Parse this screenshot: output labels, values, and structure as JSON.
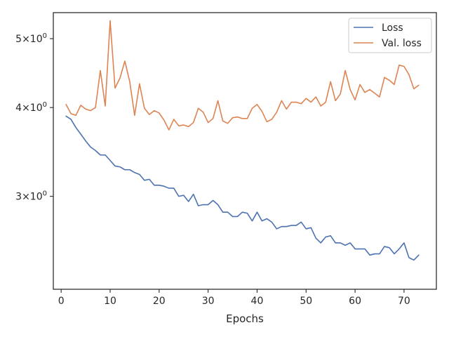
{
  "chart_data": {
    "type": "line",
    "title": "",
    "xlabel": "Epochs",
    "ylabel": "",
    "y_scale": "log",
    "xlim": [
      -1.6,
      76.6
    ],
    "ylim": [
      2.22,
      5.44
    ],
    "grid": false,
    "legend_position": "top-right",
    "x_ticks": [
      {
        "value": 0,
        "label": "0"
      },
      {
        "value": 10,
        "label": "10"
      },
      {
        "value": 20,
        "label": "20"
      },
      {
        "value": 30,
        "label": "30"
      },
      {
        "value": 40,
        "label": "40"
      },
      {
        "value": 50,
        "label": "50"
      },
      {
        "value": 60,
        "label": "60"
      },
      {
        "value": 70,
        "label": "70"
      }
    ],
    "y_ticks": [
      {
        "value": 3,
        "base": "3",
        "sup": "0"
      },
      {
        "value": 4,
        "base": "4",
        "sup": "0"
      },
      {
        "value": 5,
        "base": "5",
        "sup": "0"
      }
    ],
    "series": [
      {
        "name": "Loss",
        "color": "#4c72b0",
        "x": [
          1,
          2,
          3,
          4,
          5,
          6,
          7,
          8,
          9,
          10,
          11,
          12,
          13,
          14,
          15,
          16,
          17,
          18,
          19,
          20,
          21,
          22,
          23,
          24,
          25,
          26,
          27,
          28,
          29,
          30,
          31,
          32,
          33,
          34,
          35,
          36,
          37,
          38,
          39,
          40,
          41,
          42,
          43,
          44,
          45,
          46,
          47,
          48,
          49,
          50,
          51,
          52,
          53,
          54,
          55,
          56,
          57,
          58,
          59,
          60,
          61,
          62,
          63,
          64,
          65,
          66,
          67,
          68,
          69,
          70,
          71,
          72,
          73
        ],
        "y": [
          3.89,
          3.85,
          3.75,
          3.67,
          3.59,
          3.52,
          3.48,
          3.43,
          3.43,
          3.37,
          3.31,
          3.3,
          3.27,
          3.27,
          3.24,
          3.22,
          3.16,
          3.17,
          3.11,
          3.11,
          3.1,
          3.08,
          3.08,
          3.0,
          3.01,
          2.95,
          3.02,
          2.91,
          2.92,
          2.92,
          2.96,
          2.92,
          2.85,
          2.85,
          2.81,
          2.81,
          2.85,
          2.84,
          2.77,
          2.85,
          2.77,
          2.79,
          2.76,
          2.7,
          2.72,
          2.72,
          2.73,
          2.73,
          2.76,
          2.7,
          2.71,
          2.62,
          2.58,
          2.63,
          2.64,
          2.58,
          2.58,
          2.56,
          2.58,
          2.53,
          2.53,
          2.53,
          2.48,
          2.49,
          2.49,
          2.55,
          2.54,
          2.49,
          2.53,
          2.58,
          2.46,
          2.44,
          2.48
        ]
      },
      {
        "name": "Val. loss",
        "color": "#dd8452",
        "x": [
          1,
          2,
          3,
          4,
          5,
          6,
          7,
          8,
          9,
          10,
          11,
          12,
          13,
          14,
          15,
          16,
          17,
          18,
          19,
          20,
          21,
          22,
          23,
          24,
          25,
          26,
          27,
          28,
          29,
          30,
          31,
          32,
          33,
          34,
          35,
          36,
          37,
          38,
          39,
          40,
          41,
          42,
          43,
          44,
          45,
          46,
          47,
          48,
          49,
          50,
          51,
          52,
          53,
          54,
          55,
          56,
          57,
          58,
          59,
          60,
          61,
          62,
          63,
          64,
          65,
          66,
          67,
          68,
          69,
          70,
          71,
          72,
          73
        ],
        "y": [
          4.04,
          3.92,
          3.9,
          4.03,
          3.98,
          3.96,
          4.0,
          4.51,
          4.02,
          5.3,
          4.26,
          4.4,
          4.65,
          4.35,
          3.9,
          4.32,
          3.99,
          3.91,
          3.96,
          3.93,
          3.84,
          3.72,
          3.85,
          3.77,
          3.78,
          3.76,
          3.81,
          3.99,
          3.94,
          3.81,
          3.86,
          4.09,
          3.83,
          3.8,
          3.87,
          3.88,
          3.86,
          3.86,
          3.99,
          4.04,
          3.95,
          3.82,
          3.85,
          3.94,
          4.09,
          3.98,
          4.07,
          4.07,
          4.05,
          4.12,
          4.07,
          4.14,
          4.02,
          4.07,
          4.35,
          4.09,
          4.18,
          4.51,
          4.24,
          4.1,
          4.31,
          4.2,
          4.24,
          4.19,
          4.14,
          4.41,
          4.37,
          4.31,
          4.59,
          4.57,
          4.45,
          4.25,
          4.3
        ]
      }
    ]
  }
}
